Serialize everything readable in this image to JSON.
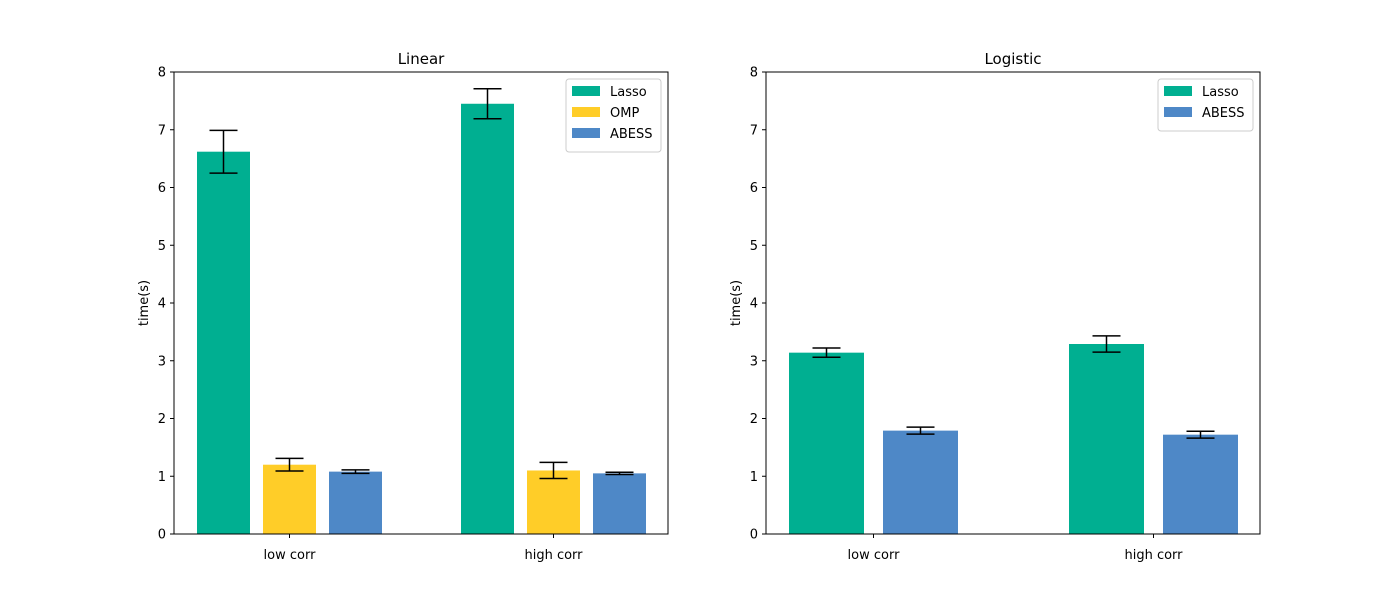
{
  "chart_data": [
    {
      "type": "bar",
      "title": "Linear",
      "xlabel": "",
      "ylabel": "time(s)",
      "ylim": [
        0,
        8
      ],
      "yticks": [
        0,
        1,
        2,
        3,
        4,
        5,
        6,
        7,
        8
      ],
      "categories": [
        "low corr",
        "high corr"
      ],
      "legend_position": "top-right",
      "grid": false,
      "series": [
        {
          "name": "Lasso",
          "color": "#00af91",
          "values": [
            6.62,
            7.45
          ],
          "errors": [
            0.37,
            0.26
          ]
        },
        {
          "name": "OMP",
          "color": "#ffcd28",
          "values": [
            1.2,
            1.1
          ],
          "errors": [
            0.11,
            0.14
          ]
        },
        {
          "name": "ABESS",
          "color": "#4e88c7",
          "values": [
            1.08,
            1.05
          ],
          "errors": [
            0.03,
            0.02
          ]
        }
      ]
    },
    {
      "type": "bar",
      "title": "Logistic",
      "xlabel": "",
      "ylabel": "time(s)",
      "ylim": [
        0,
        8
      ],
      "yticks": [
        0,
        1,
        2,
        3,
        4,
        5,
        6,
        7,
        8
      ],
      "categories": [
        "low corr",
        "high corr"
      ],
      "legend_position": "top-right",
      "grid": false,
      "series": [
        {
          "name": "Lasso",
          "color": "#00af91",
          "values": [
            3.14,
            3.29
          ],
          "errors": [
            0.08,
            0.14
          ]
        },
        {
          "name": "ABESS",
          "color": "#4e88c7",
          "values": [
            1.79,
            1.72
          ],
          "errors": [
            0.06,
            0.06
          ]
        }
      ]
    }
  ]
}
